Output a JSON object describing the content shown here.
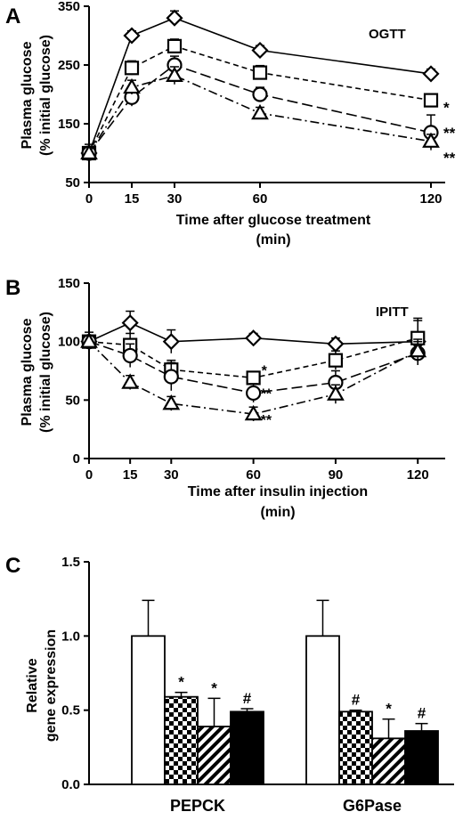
{
  "chart_data": [
    {
      "panel": "A",
      "type": "line",
      "title": "OGTT",
      "xlabel": "Time after glucose treatment",
      "xlabel_unit": "(min)",
      "ylabel": "Plasma glucose",
      "ylabel_sub": "(% initial glucose)",
      "xlim": [
        0,
        125
      ],
      "ylim": [
        50,
        350
      ],
      "xticks": [
        0,
        15,
        30,
        60,
        120
      ],
      "yticks": [
        50,
        150,
        250,
        350
      ],
      "x": [
        0,
        15,
        30,
        60,
        120
      ],
      "series": [
        {
          "marker": "diamond",
          "line": "solid",
          "values": [
            100,
            300,
            330,
            275,
            235
          ],
          "err": [
            0,
            8,
            12,
            8,
            8
          ],
          "end_label": ""
        },
        {
          "marker": "square",
          "line": "dashed",
          "values": [
            100,
            245,
            282,
            237,
            190
          ],
          "err": [
            0,
            12,
            12,
            12,
            10
          ],
          "end_label": "*"
        },
        {
          "marker": "circle",
          "line": "longdash",
          "values": [
            100,
            195,
            250,
            200,
            135
          ],
          "err": [
            15,
            15,
            15,
            12,
            30
          ],
          "end_label": "**"
        },
        {
          "marker": "triangle",
          "line": "dashdot",
          "values": [
            100,
            212,
            232,
            168,
            120
          ],
          "err": [
            0,
            12,
            15,
            10,
            12
          ],
          "end_label": "**"
        }
      ]
    },
    {
      "panel": "B",
      "type": "line",
      "title": "IPITT",
      "xlabel": "Time after insulin injection",
      "xlabel_unit": "(min)",
      "ylabel": "Plasma glucose",
      "ylabel_sub": "(% initial glucose)",
      "xlim": [
        0,
        130
      ],
      "ylim": [
        0,
        150
      ],
      "xticks": [
        0,
        15,
        30,
        60,
        90,
        120
      ],
      "yticks": [
        0,
        50,
        100,
        150
      ],
      "x": [
        0,
        15,
        30,
        60,
        90,
        120
      ],
      "series": [
        {
          "marker": "diamond",
          "line": "solid",
          "values": [
            100,
            116,
            100,
            103,
            98,
            100
          ],
          "err": [
            5,
            10,
            10,
            4,
            5,
            20
          ],
          "end_label": ""
        },
        {
          "marker": "square",
          "line": "dashed",
          "values": [
            100,
            97,
            76,
            69,
            84,
            103
          ],
          "err": [
            5,
            10,
            8,
            5,
            8,
            15
          ],
          "end_label": "*"
        },
        {
          "marker": "circle",
          "line": "longdash",
          "values": [
            100,
            88,
            70,
            56,
            65,
            90
          ],
          "err": [
            8,
            10,
            12,
            8,
            10,
            10
          ],
          "end_label": "**"
        },
        {
          "marker": "triangle",
          "line": "dashdot",
          "values": [
            100,
            65,
            47,
            38,
            55,
            92
          ],
          "err": [
            5,
            6,
            6,
            6,
            8,
            10
          ],
          "end_label": "**"
        }
      ]
    },
    {
      "panel": "C",
      "type": "bar",
      "ylabel": "Relative",
      "ylabel_sub": "gene expression",
      "ylim": [
        0,
        1.5
      ],
      "yticks": [
        "0.0",
        "0.5",
        "1.0",
        "1.5"
      ],
      "categories": [
        "PEPCK",
        "G6Pase"
      ],
      "series": [
        {
          "pattern": "white",
          "values": [
            1.0,
            1.0
          ],
          "err": [
            0.24,
            0.24
          ],
          "labels": [
            "",
            ""
          ]
        },
        {
          "pattern": "checker",
          "values": [
            0.59,
            0.49
          ],
          "err": [
            0.03,
            0.01
          ],
          "labels": [
            "*",
            "#"
          ]
        },
        {
          "pattern": "hatch",
          "values": [
            0.39,
            0.31
          ],
          "err": [
            0.19,
            0.13
          ],
          "labels": [
            "*",
            "*"
          ]
        },
        {
          "pattern": "black",
          "values": [
            0.49,
            0.36
          ],
          "err": [
            0.02,
            0.05
          ],
          "labels": [
            "#",
            "#"
          ]
        }
      ]
    }
  ]
}
